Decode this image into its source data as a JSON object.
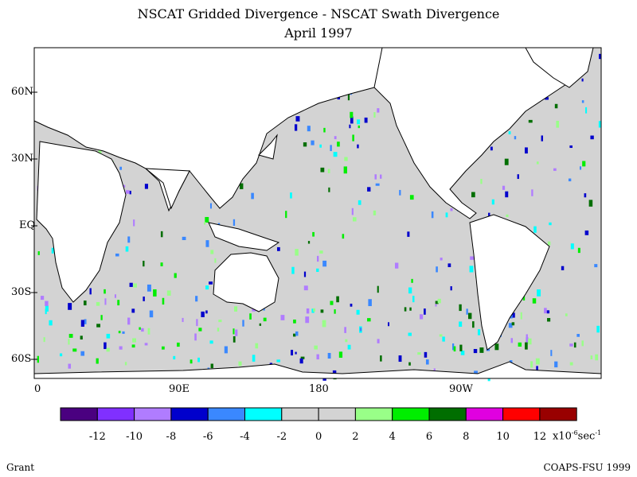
{
  "title_line1": "NSCAT Gridded Divergence - NSCAT Swath Divergence",
  "title_line2": "April 1997",
  "lat_labels": [
    "60N",
    "30N",
    "EQ",
    "30S",
    "60S"
  ],
  "lon_labels": [
    "0",
    "90E",
    "180",
    "90W"
  ],
  "colorbar": {
    "colors": [
      "#4a0080",
      "#8030ff",
      "#b07cff",
      "#0000cc",
      "#3a88ff",
      "#00ffff",
      "#d3d3d3",
      "#d3d3d3",
      "#99ff88",
      "#00ee00",
      "#006e00",
      "#e000e0",
      "#ff0000",
      "#990000"
    ],
    "tick_labels": [
      "-12",
      "-10",
      "-8",
      "-6",
      "-4",
      "-2",
      "0",
      "2",
      "4",
      "6",
      "8",
      "10",
      "12"
    ],
    "unit_base": "x10",
    "unit_exp": "-6",
    "unit_mid": "sec",
    "unit_exp2": "-1"
  },
  "footer_left": "Grant",
  "footer_right": "COAPS-FSU 1999"
}
